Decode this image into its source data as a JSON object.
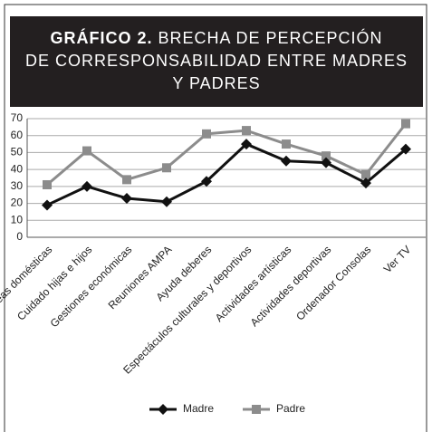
{
  "chart_data": {
    "type": "line",
    "title_label": "GRÁFICO 2.",
    "title_lines": [
      "BRECHA DE PERCEPCIÓN",
      "DE CORRESPONSABILIDAD ENTRE MADRES",
      "Y PADRES"
    ],
    "categories": [
      "Tareas domésticas",
      "Cuidado hijas e hijos",
      "Gestiones económicas",
      "Reuniones AMPA",
      "Ayuda deberes",
      "Espectáculos culturales y deportivos",
      "Actividades  artísticas",
      "Actividades deportivas",
      "Ordenador Consolas",
      "Ver TV"
    ],
    "series": [
      {
        "name": "Madre",
        "color": "#111111",
        "marker": "diamond",
        "values": [
          19,
          30,
          23,
          21,
          33,
          55,
          45,
          44,
          32,
          52
        ]
      },
      {
        "name": "Padre",
        "color": "#8c8c8c",
        "marker": "square",
        "values": [
          31,
          51,
          34,
          41,
          61,
          63,
          55,
          48,
          37,
          67
        ]
      }
    ],
    "ylim": [
      0,
      70
    ],
    "yticks": [
      0,
      10,
      20,
      30,
      40,
      50,
      60,
      70
    ],
    "grid": true,
    "legend": "bottom"
  }
}
